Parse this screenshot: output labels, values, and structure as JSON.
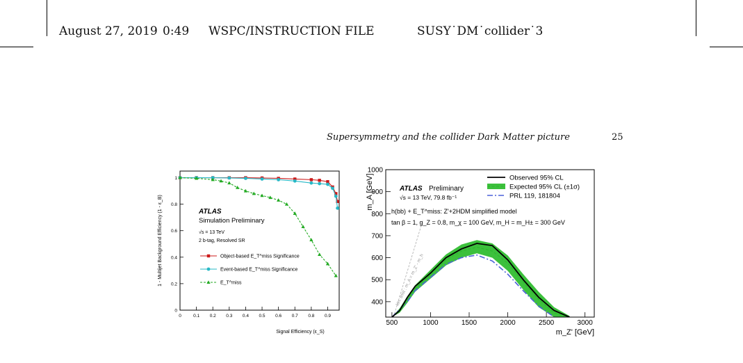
{
  "header": {
    "date": "August 27, 2019",
    "time": "0:49",
    "file_type": "WSPC/INSTRUCTION FILE",
    "filename": "SUSY˙DM˙collider˙3"
  },
  "running_head": {
    "title": "Supersymmetry and the collider Dark Matter picture",
    "page": "25"
  },
  "chart_data": [
    {
      "type": "line",
      "xlabel": "Signal Efficiency (ε_S)",
      "ylabel": "1 - Multijet Background Efficiency (1 - ε_B)",
      "xlim": [
        0,
        0.97
      ],
      "ylim": [
        0,
        1.05
      ],
      "x_ticks": [
        "0",
        "0.1",
        "0.2",
        "0.3",
        "0.4",
        "0.5",
        "0.6",
        "0.7",
        "0.8",
        "0.9"
      ],
      "y_ticks": [
        "0",
        "0.2",
        "0.4",
        "0.6",
        "0.8",
        "1"
      ],
      "annotations": {
        "experiment": "ATLAS",
        "status": "Simulation Preliminary",
        "energy": "√s = 13 TeV",
        "selection": "2 b-tag, Resolved SR"
      },
      "legend_position": "middle-left",
      "series": [
        {
          "name": "Object-based E_T^miss Significance",
          "color": "#cc1a1a",
          "marker": "square",
          "x": [
            0.0,
            0.1,
            0.2,
            0.3,
            0.4,
            0.5,
            0.6,
            0.7,
            0.8,
            0.85,
            0.9,
            0.93,
            0.95,
            0.96
          ],
          "y": [
            1.0,
            1.0,
            1.0,
            1.0,
            1.0,
            0.998,
            0.995,
            0.99,
            0.985,
            0.98,
            0.97,
            0.93,
            0.88,
            0.82
          ]
        },
        {
          "name": "Event-based E_T^miss Significance",
          "color": "#27b8c6",
          "marker": "circle",
          "x": [
            0.0,
            0.1,
            0.2,
            0.3,
            0.4,
            0.5,
            0.6,
            0.7,
            0.8,
            0.85,
            0.9,
            0.93,
            0.95,
            0.96
          ],
          "y": [
            1.0,
            1.0,
            1.0,
            0.998,
            0.995,
            0.99,
            0.985,
            0.975,
            0.96,
            0.955,
            0.95,
            0.92,
            0.86,
            0.77
          ]
        },
        {
          "name": "E_T^miss",
          "color": "#22aa22",
          "marker": "triangle",
          "x": [
            0.0,
            0.1,
            0.2,
            0.25,
            0.3,
            0.35,
            0.4,
            0.45,
            0.5,
            0.55,
            0.6,
            0.65,
            0.7,
            0.75,
            0.8,
            0.85,
            0.9,
            0.95
          ],
          "y": [
            1.0,
            0.995,
            0.985,
            0.975,
            0.96,
            0.925,
            0.9,
            0.88,
            0.865,
            0.85,
            0.83,
            0.8,
            0.73,
            0.63,
            0.53,
            0.42,
            0.35,
            0.26
          ]
        }
      ]
    },
    {
      "type": "line",
      "xlabel": "m_Z' [GeV]",
      "ylabel": "m_A [GeV]",
      "xlim": [
        420,
        3120
      ],
      "ylim": [
        330,
        1000
      ],
      "x_ticks": [
        "500",
        "1000",
        "1500",
        "2000",
        "2500",
        "3000"
      ],
      "y_ticks": [
        "400",
        "500",
        "600",
        "700",
        "800",
        "900",
        "1000"
      ],
      "annotations": {
        "experiment": "ATLAS",
        "status": "Preliminary",
        "energy": "√s = 13 TeV, 79.8 fb⁻¹",
        "model": "h(bb) + E_T^miss: Z'+2HDM simplified model",
        "params": "tan β = 1, g_Z = 0.8, m_χ = 100 GeV, m_H = m_H± = 300 GeV",
        "kin_limit": "kin. limit : m_A = m_Z' - m_h"
      },
      "legend_position": "top-right",
      "series": [
        {
          "name": "Observed 95% CL",
          "color": "#000000",
          "x": [
            500,
            600,
            700,
            800,
            1000,
            1200,
            1400,
            1600,
            1800,
            2000,
            2200,
            2400,
            2600,
            2800
          ],
          "y": [
            330,
            360,
            420,
            470,
            530,
            600,
            640,
            665,
            655,
            590,
            500,
            420,
            360,
            330
          ]
        },
        {
          "name": "Expected 95% CL (±1σ)",
          "color": "#2eb82e",
          "x": [
            500,
            600,
            700,
            800,
            1000,
            1200,
            1400,
            1600,
            1800,
            2000,
            2200,
            2400,
            2600,
            2800
          ],
          "y": [
            330,
            360,
            410,
            460,
            525,
            590,
            630,
            648,
            630,
            575,
            490,
            410,
            350,
            325
          ],
          "band_lo": [
            330,
            350,
            395,
            445,
            505,
            565,
            600,
            620,
            600,
            540,
            455,
            375,
            330,
            330
          ],
          "band_hi": [
            330,
            370,
            425,
            475,
            545,
            615,
            660,
            680,
            665,
            610,
            525,
            445,
            375,
            335
          ]
        },
        {
          "name": "PRL 119, 181804",
          "color": "#4a60d8",
          "x": [
            500,
            700,
            800,
            1000,
            1200,
            1400,
            1600,
            1800,
            2000,
            2200,
            2400,
            2600
          ],
          "y": [
            330,
            400,
            450,
            510,
            570,
            600,
            612,
            585,
            525,
            450,
            380,
            330
          ]
        }
      ]
    }
  ],
  "colors": {
    "green_band": "#3cc03c"
  }
}
